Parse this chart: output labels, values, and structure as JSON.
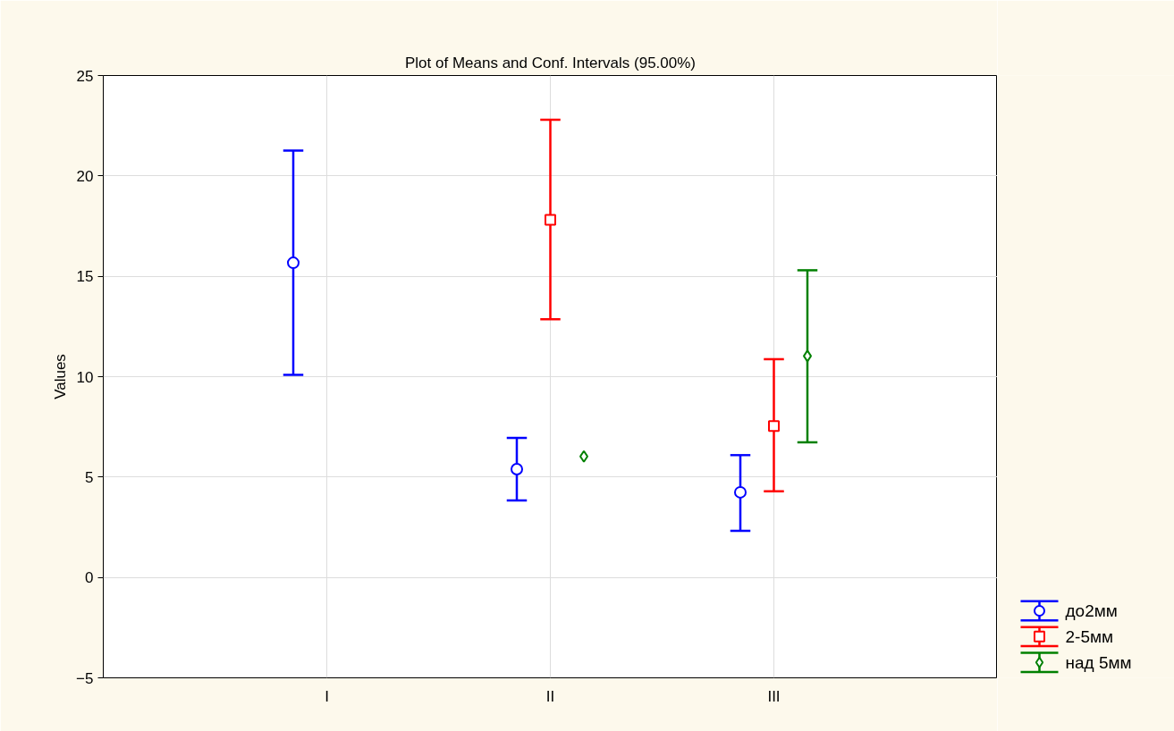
{
  "chart_data": {
    "type": "scatter",
    "title": "Plot of Means and Conf. Intervals (95.00%)",
    "ylabel": "Values",
    "categories": [
      "I",
      "II",
      "III"
    ],
    "series": [
      {
        "name": "до2мм",
        "color": "#0000ff",
        "marker": "circle",
        "values": [
          15.67,
          5.39,
          4.24
        ],
        "errors": [
          [
            10.09,
            21.26
          ],
          [
            3.84,
            6.95
          ],
          [
            2.32,
            6.09
          ]
        ]
      },
      {
        "name": "2-5мм",
        "color": "#ff0000",
        "marker": "square",
        "values": [
          null,
          17.81,
          7.54
        ],
        "errors": [
          null,
          [
            12.86,
            22.8
          ],
          [
            4.29,
            10.87
          ]
        ]
      },
      {
        "name": "над 5мм",
        "color": "#008000",
        "marker": "diamond",
        "values": [
          null,
          6.03,
          11.03
        ],
        "errors": [
          null,
          null,
          [
            6.73,
            15.3
          ]
        ]
      }
    ],
    "ylim": [
      -5,
      25
    ],
    "yticks": [
      -5,
      0,
      5,
      10,
      15,
      20,
      25
    ],
    "grid": true,
    "legend": "bottom right"
  }
}
